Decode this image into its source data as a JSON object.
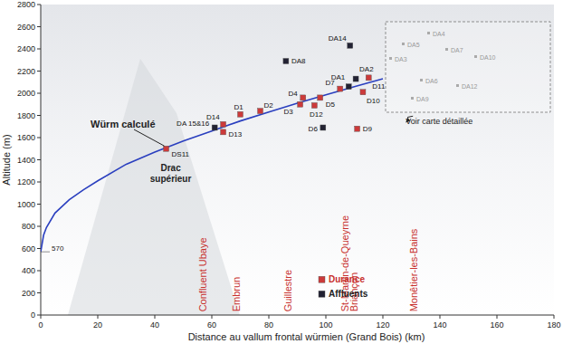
{
  "chart_data": {
    "type": "scatter",
    "x_label": "Distance au vallum frontal würmien (Grand Bois) (km)",
    "y_label": "Altitude (m)",
    "xlim": [
      0,
      180
    ],
    "ylim": [
      0,
      2800
    ],
    "xticks": [
      0,
      20,
      40,
      60,
      80,
      100,
      120,
      140,
      160,
      180
    ],
    "yticks": [
      0,
      200,
      400,
      600,
      800,
      1000,
      1200,
      1400,
      1600,
      1800,
      2000,
      2200,
      2400,
      2600,
      2800
    ],
    "grid": false,
    "legend": "bottom",
    "series": [
      {
        "name": "Würm calculé",
        "type": "line",
        "color": "#2a3fbf",
        "x": [
          0,
          1,
          2,
          5,
          10,
          15,
          20,
          30,
          40,
          50,
          60,
          70,
          80,
          90,
          100,
          110,
          120
        ],
        "values": [
          570,
          720,
          790,
          920,
          1040,
          1130,
          1210,
          1360,
          1470,
          1570,
          1660,
          1750,
          1830,
          1910,
          1985,
          2060,
          2130
        ]
      },
      {
        "name": "Durance",
        "type": "scatter",
        "marker": "square",
        "color": "#cc3a3a",
        "labels": [
          "DS11",
          "D14",
          "D13",
          "D1",
          "D2",
          "D3",
          "D4",
          "D12",
          "D5",
          "D7",
          "D9",
          "D10",
          "D11"
        ],
        "x": [
          44,
          64,
          64,
          70,
          77,
          91,
          92,
          96,
          98,
          105,
          111,
          113,
          115
        ],
        "values": [
          1500,
          1720,
          1650,
          1810,
          1840,
          1900,
          1960,
          1890,
          1960,
          2040,
          1680,
          2010,
          2140
        ]
      },
      {
        "name": "Affluents",
        "type": "scatter",
        "marker": "square",
        "color": "#222233",
        "labels": [
          "DA 15&16",
          "D6",
          "DA8",
          "DA1",
          "DA2",
          "DA14"
        ],
        "x": [
          61,
          99,
          86,
          108,
          110.5,
          108.5
        ],
        "values": [
          1690,
          1690,
          2290,
          2060,
          2130,
          2430
        ]
      }
    ],
    "annotations": [
      {
        "text": "570",
        "x": 0,
        "y": 570
      },
      {
        "text": "Drac supérieur",
        "x": 44,
        "y": 1300
      },
      {
        "text": "Voir carte détaillée",
        "x": 128,
        "y": 1720
      },
      {
        "text": "Confluent Ubaye",
        "x": 58,
        "y": 30
      },
      {
        "text": "Embrun",
        "x": 70,
        "y": 30
      },
      {
        "text": "Guillestre",
        "x": 88,
        "y": 30
      },
      {
        "text": "St-Martin-de-Queyrne",
        "x": 108,
        "y": 30
      },
      {
        "text": "Briançon",
        "x": 111,
        "y": 30
      },
      {
        "text": "Monêtier-les-Bains",
        "x": 132,
        "y": 30
      }
    ],
    "inset_labels": [
      "DA4",
      "DA5",
      "DA10",
      "DA3",
      "DA6",
      "DA12",
      "DA7",
      "DA9"
    ]
  }
}
